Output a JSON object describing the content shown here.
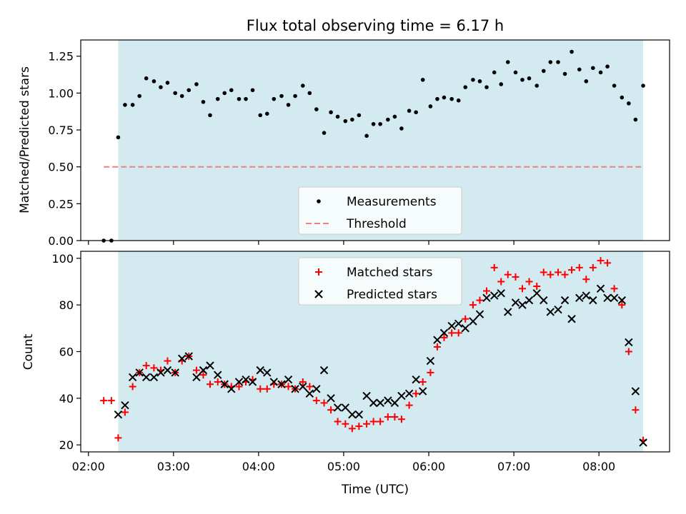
{
  "chart_data": [
    {
      "type": "scatter",
      "title": "Flux total observing time = 6.17 h",
      "ylabel": "Matched/Predicted stars",
      "ylim": [
        0,
        1.36
      ],
      "yticks": [
        "0.00",
        "0.25",
        "0.50",
        "0.75",
        "1.00",
        "1.25"
      ],
      "ytick_values": [
        0,
        0.25,
        0.5,
        0.75,
        1.0,
        1.25
      ],
      "xlim_hours": [
        1.91,
        8.83
      ],
      "shaded_span_hours": [
        2.35,
        8.52
      ],
      "shade_color": "#d3eaf0",
      "legend_position": "lower center",
      "legend": [
        "Measurements",
        "Threshold"
      ],
      "threshold": {
        "value": 0.5,
        "x_start": 2.18,
        "x_end": 8.52,
        "color": "#f08080",
        "style": "dashed"
      },
      "series": [
        {
          "name": "Measurements",
          "color": "#000000",
          "marker": "dot",
          "x": [
            2.18,
            2.27,
            2.35,
            2.43,
            2.52,
            2.6,
            2.68,
            2.77,
            2.85,
            2.93,
            3.02,
            3.1,
            3.18,
            3.27,
            3.35,
            3.43,
            3.52,
            3.6,
            3.68,
            3.77,
            3.85,
            3.93,
            4.02,
            4.1,
            4.18,
            4.27,
            4.35,
            4.43,
            4.52,
            4.6,
            4.68,
            4.77,
            4.85,
            4.93,
            5.02,
            5.1,
            5.18,
            5.27,
            5.35,
            5.43,
            5.52,
            5.6,
            5.68,
            5.77,
            5.85,
            5.93,
            6.02,
            6.1,
            6.18,
            6.27,
            6.35,
            6.43,
            6.52,
            6.6,
            6.68,
            6.77,
            6.85,
            6.93,
            7.02,
            7.1,
            7.18,
            7.27,
            7.35,
            7.43,
            7.52,
            7.6,
            7.68,
            7.77,
            7.85,
            7.93,
            8.02,
            8.1,
            8.18,
            8.27,
            8.35,
            8.43,
            8.52
          ],
          "values": [
            0.0,
            0.0,
            0.7,
            0.92,
            0.92,
            0.98,
            1.1,
            1.08,
            1.04,
            1.07,
            1.0,
            0.98,
            1.02,
            1.06,
            0.94,
            0.85,
            0.96,
            1.0,
            1.02,
            0.96,
            0.96,
            1.02,
            0.85,
            0.86,
            0.96,
            0.98,
            0.92,
            0.98,
            1.05,
            1.0,
            0.89,
            0.73,
            0.87,
            0.84,
            0.81,
            0.82,
            0.85,
            0.71,
            0.79,
            0.79,
            0.82,
            0.84,
            0.76,
            0.88,
            0.87,
            1.09,
            0.91,
            0.96,
            0.97,
            0.96,
            0.95,
            1.04,
            1.09,
            1.08,
            1.04,
            1.14,
            1.06,
            1.21,
            1.14,
            1.09,
            1.1,
            1.05,
            1.15,
            1.21,
            1.21,
            1.13,
            1.28,
            1.16,
            1.08,
            1.17,
            1.14,
            1.18,
            1.05,
            0.97,
            0.93,
            0.82,
            1.05
          ]
        }
      ]
    },
    {
      "type": "scatter",
      "xlabel": "Time (UTC)",
      "ylabel": "Count",
      "ylim": [
        17,
        103
      ],
      "yticks": [
        "20",
        "40",
        "60",
        "80",
        "100"
      ],
      "ytick_values": [
        20,
        40,
        60,
        80,
        100
      ],
      "xlim_hours": [
        1.91,
        8.83
      ],
      "xticks": [
        "02:00",
        "03:00",
        "04:00",
        "05:00",
        "06:00",
        "07:00",
        "08:00"
      ],
      "xtick_values": [
        2,
        3,
        4,
        5,
        6,
        7,
        8
      ],
      "shaded_span_hours": [
        2.35,
        8.52
      ],
      "shade_color": "#d3eaf0",
      "legend_position": "upper center",
      "legend": [
        "Matched stars",
        "Predicted stars"
      ],
      "series": [
        {
          "name": "Matched stars",
          "color": "#ff0000",
          "marker": "plus",
          "x": [
            2.18,
            2.27,
            2.35,
            2.43,
            2.52,
            2.6,
            2.68,
            2.77,
            2.85,
            2.93,
            3.02,
            3.1,
            3.18,
            3.27,
            3.35,
            3.43,
            3.52,
            3.6,
            3.68,
            3.77,
            3.85,
            3.93,
            4.02,
            4.1,
            4.18,
            4.27,
            4.35,
            4.43,
            4.52,
            4.6,
            4.68,
            4.77,
            4.85,
            4.93,
            5.02,
            5.1,
            5.18,
            5.27,
            5.35,
            5.43,
            5.52,
            5.6,
            5.68,
            5.77,
            5.85,
            5.93,
            6.02,
            6.1,
            6.18,
            6.27,
            6.35,
            6.43,
            6.52,
            6.6,
            6.68,
            6.77,
            6.85,
            6.93,
            7.02,
            7.1,
            7.18,
            7.27,
            7.35,
            7.43,
            7.52,
            7.6,
            7.68,
            7.77,
            7.85,
            7.93,
            8.02,
            8.1,
            8.18,
            8.27,
            8.35,
            8.43,
            8.52
          ],
          "values": [
            39,
            39,
            23,
            34,
            45,
            51,
            54,
            53,
            52,
            56,
            51,
            56,
            58,
            52,
            50,
            46,
            47,
            46,
            45,
            45,
            47,
            48,
            44,
            44,
            46,
            46,
            45,
            44,
            47,
            45,
            39,
            38,
            35,
            30,
            29,
            27,
            28,
            29,
            30,
            30,
            32,
            32,
            31,
            37,
            42,
            47,
            51,
            62,
            66,
            68,
            68,
            74,
            80,
            82,
            86,
            96,
            90,
            93,
            92,
            87,
            90,
            88,
            94,
            93,
            94,
            93,
            95,
            96,
            91,
            96,
            99,
            98,
            87,
            80,
            60,
            35,
            22
          ]
        },
        {
          "name": "Predicted stars",
          "color": "#000000",
          "marker": "cross",
          "x": [
            2.35,
            2.43,
            2.52,
            2.6,
            2.68,
            2.77,
            2.85,
            2.93,
            3.02,
            3.1,
            3.18,
            3.27,
            3.35,
            3.43,
            3.52,
            3.6,
            3.68,
            3.77,
            3.85,
            3.93,
            4.02,
            4.1,
            4.18,
            4.27,
            4.35,
            4.43,
            4.52,
            4.6,
            4.68,
            4.77,
            4.85,
            4.93,
            5.02,
            5.1,
            5.18,
            5.27,
            5.35,
            5.43,
            5.52,
            5.6,
            5.68,
            5.77,
            5.85,
            5.93,
            6.02,
            6.1,
            6.18,
            6.27,
            6.35,
            6.43,
            6.52,
            6.6,
            6.68,
            6.77,
            6.85,
            6.93,
            7.02,
            7.1,
            7.18,
            7.27,
            7.35,
            7.43,
            7.52,
            7.6,
            7.68,
            7.77,
            7.85,
            7.93,
            8.02,
            8.1,
            8.18,
            8.27,
            8.35,
            8.43,
            8.52
          ],
          "values": [
            33,
            37,
            49,
            51,
            49,
            49,
            51,
            52,
            51,
            57,
            58,
            49,
            52,
            54,
            50,
            46,
            44,
            47,
            48,
            47,
            52,
            51,
            47,
            46,
            48,
            44,
            45,
            42,
            44,
            52,
            40,
            36,
            36,
            33,
            33,
            41,
            38,
            38,
            39,
            38,
            41,
            42,
            48,
            43,
            56,
            65,
            68,
            71,
            72,
            70,
            73,
            76,
            83,
            84,
            85,
            77,
            81,
            80,
            82,
            85,
            82,
            77,
            78,
            82,
            74,
            83,
            84,
            82,
            87,
            83,
            83,
            82,
            64,
            43,
            21
          ]
        }
      ]
    }
  ]
}
